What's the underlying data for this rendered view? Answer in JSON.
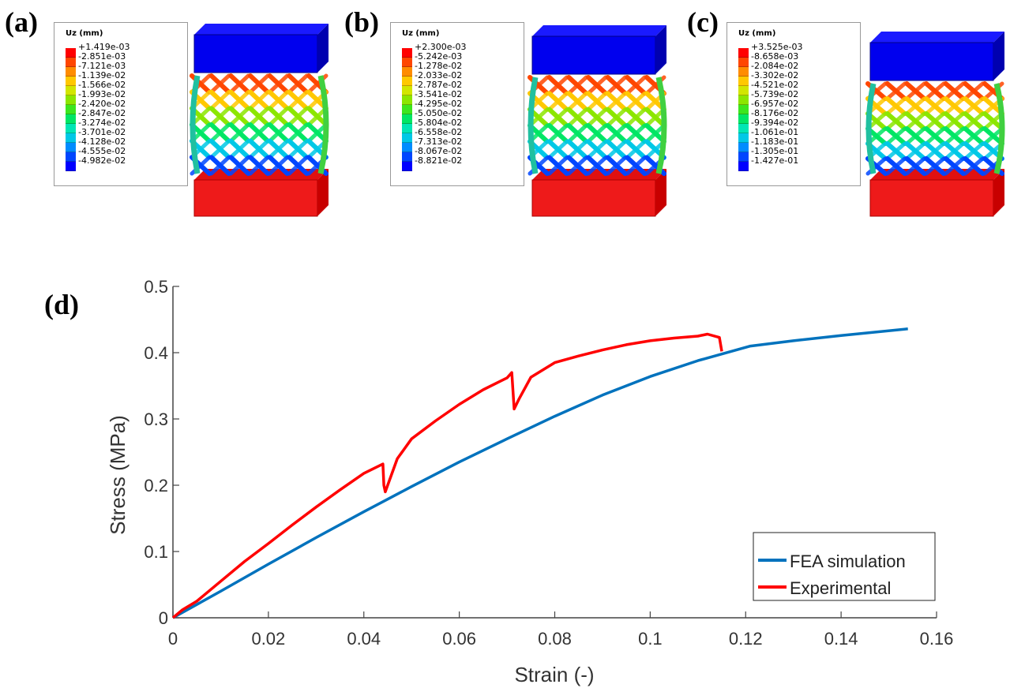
{
  "panels": [
    {
      "label": "(a)",
      "legend_title": "Uz (mm)",
      "values": [
        "+1.419e-03",
        "-2.851e-03",
        "-7.121e-03",
        "-1.139e-02",
        "-1.566e-02",
        "-1.993e-02",
        "-2.420e-02",
        "-2.847e-02",
        "-3.274e-02",
        "-3.701e-02",
        "-4.128e-02",
        "-4.555e-02",
        "-4.982e-02"
      ]
    },
    {
      "label": "(b)",
      "legend_title": "Uz (mm)",
      "values": [
        "+2.300e-03",
        "-5.242e-03",
        "-1.278e-02",
        "-2.033e-02",
        "-2.787e-02",
        "-3.541e-02",
        "-4.295e-02",
        "-5.050e-02",
        "-5.804e-02",
        "-6.558e-02",
        "-7.313e-02",
        "-8.067e-02",
        "-8.821e-02"
      ]
    },
    {
      "label": "(c)",
      "legend_title": "Uz (mm)",
      "values": [
        "+3.525e-03",
        "-8.658e-03",
        "-2.084e-02",
        "-3.302e-02",
        "-4.521e-02",
        "-5.739e-02",
        "-6.957e-02",
        "-8.176e-02",
        "-9.394e-02",
        "-1.061e-01",
        "-1.183e-01",
        "-1.305e-01",
        "-1.427e-01"
      ]
    }
  ],
  "colormap": [
    "#ff0000",
    "#ff4600",
    "#ff8c00",
    "#ffc800",
    "#d2e600",
    "#8ce600",
    "#3ce61e",
    "#00e664",
    "#00e6b4",
    "#00c8e6",
    "#008cff",
    "#0046ff",
    "#0000ff"
  ],
  "panel_d_label": "(d)",
  "chart_data": {
    "type": "line",
    "xlabel": "Strain (-)",
    "ylabel": "Stress (MPa)",
    "xlim": [
      0,
      0.16
    ],
    "ylim": [
      0,
      0.5
    ],
    "xticks": [
      "0",
      "0.02",
      "0.04",
      "0.06",
      "0.08",
      "0.1",
      "0.12",
      "0.14",
      "0.16"
    ],
    "yticks": [
      "0",
      "0.1",
      "0.2",
      "0.3",
      "0.4",
      "0.5"
    ],
    "legend_position": "bottom-right",
    "series": [
      {
        "name": "FEA simulation",
        "color": "#0072bd",
        "x": [
          0,
          0.01,
          0.02,
          0.03,
          0.04,
          0.05,
          0.06,
          0.07,
          0.08,
          0.09,
          0.1,
          0.11,
          0.121,
          0.13,
          0.14,
          0.154
        ],
        "y": [
          0,
          0.04,
          0.081,
          0.121,
          0.16,
          0.198,
          0.235,
          0.27,
          0.304,
          0.336,
          0.364,
          0.388,
          0.41,
          0.418,
          0.426,
          0.436
        ]
      },
      {
        "name": "Experimental",
        "color": "#ff0000",
        "x": [
          0,
          0.002,
          0.005,
          0.01,
          0.015,
          0.02,
          0.025,
          0.03,
          0.035,
          0.04,
          0.044,
          0.0442,
          0.0445,
          0.047,
          0.05,
          0.055,
          0.06,
          0.065,
          0.07,
          0.071,
          0.0715,
          0.0725,
          0.075,
          0.08,
          0.085,
          0.09,
          0.095,
          0.1,
          0.105,
          0.11,
          0.112,
          0.1145,
          0.115
        ],
        "y": [
          0,
          0.012,
          0.025,
          0.055,
          0.085,
          0.112,
          0.14,
          0.167,
          0.193,
          0.218,
          0.232,
          0.2,
          0.19,
          0.24,
          0.27,
          0.297,
          0.322,
          0.344,
          0.362,
          0.37,
          0.315,
          0.33,
          0.363,
          0.385,
          0.395,
          0.404,
          0.412,
          0.418,
          0.422,
          0.425,
          0.428,
          0.423,
          0.402
        ]
      }
    ]
  }
}
